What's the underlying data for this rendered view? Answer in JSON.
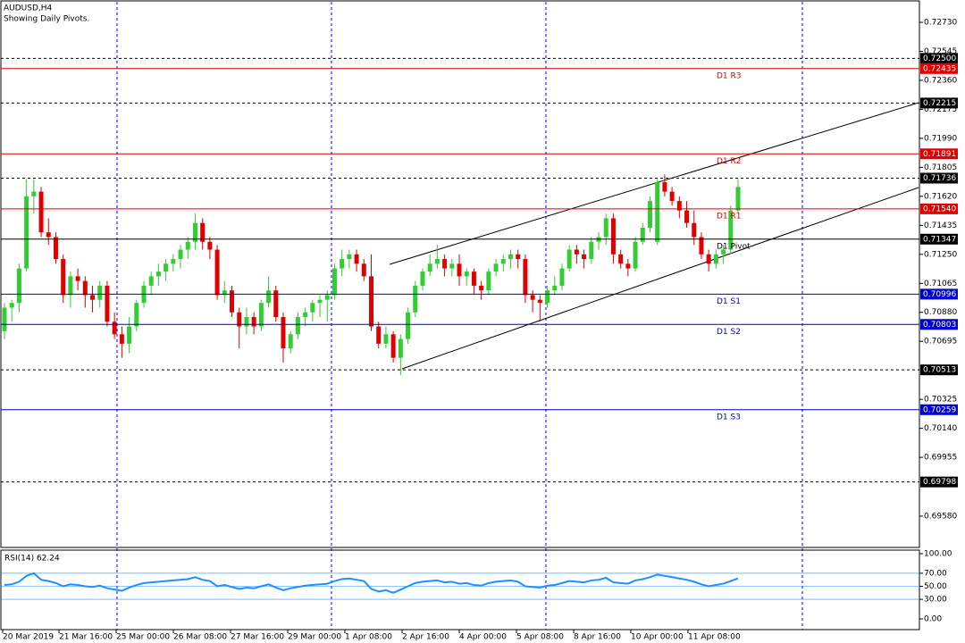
{
  "chart_data": {
    "type": "candlestick",
    "title": "AUDUSD,H4",
    "subtitle": "Showing Daily Pivots.",
    "up_color": "#32cd32",
    "down_color": "#e00000",
    "ylim": [
      0.69386,
      0.72861
    ],
    "yticks": [
      {
        "value": 0.7273,
        "label": "0.72730"
      },
      0.72545,
      {
        "value": 0.7236,
        "label": "0.72360"
      },
      {
        "value": 0.72175,
        "label": "0.72175"
      },
      {
        "value": 0.7199,
        "label": "0.71990"
      },
      0.71805,
      {
        "value": 0.7162,
        "label": "0.71620"
      },
      0.71435,
      {
        "value": 0.7125,
        "label": "0.71250"
      },
      0.71065,
      {
        "value": 0.7088,
        "label": "0.70880"
      },
      0.70695,
      0.70325,
      {
        "value": 0.7014,
        "label": "0.70140"
      },
      0.69955,
      {
        "value": 0.6958,
        "label": "0.69580"
      }
    ],
    "x_labels": [
      "20 Mar 2019",
      "21 Mar 16:00",
      "25 Mar 00:00",
      "26 Mar 08:00",
      "27 Mar 16:00",
      "29 Mar 00:00",
      "1 Apr 08:00",
      "2 Apr 16:00",
      "4 Apr 00:00",
      "5 Apr 08:00",
      "8 Apr 16:00",
      "10 Apr 00:00",
      "11 Apr 08:00"
    ],
    "levels": [
      {
        "value": 0.725,
        "label": "0.72500",
        "color": "#000000",
        "style": "dashed"
      },
      {
        "name": "D1 R3",
        "value": 0.72435,
        "label": "0.72435",
        "color": "#e00000",
        "style": "solid"
      },
      {
        "value": 0.72215,
        "label": "0.72215",
        "color": "#000000",
        "style": "dashed"
      },
      {
        "name": "D1 R2",
        "value": 0.71891,
        "label": "0.71891",
        "color": "#e00000",
        "style": "solid"
      },
      {
        "value": 0.71736,
        "label": "0.71736",
        "color": "#000000",
        "style": "dashed"
      },
      {
        "name": "D1 R1",
        "value": 0.7154,
        "label": "0.71540",
        "color": "#e00000",
        "style": "solid"
      },
      {
        "name": "D1 Pivot",
        "value": 0.71347,
        "label": "0.71347",
        "color": "#000000",
        "style": "solid"
      },
      {
        "name": "D1 S1",
        "value": 0.70996,
        "label": "0.70996",
        "color": "#0000cc",
        "style": "solid"
      },
      {
        "name": "D1 S2",
        "value": 0.70803,
        "label": "0.70803",
        "color": "#0000cc",
        "style": "solid"
      },
      {
        "value": 0.70513,
        "label": "0.70513",
        "color": "#000000",
        "style": "dashed"
      },
      {
        "name": "D1 S3",
        "value": 0.70259,
        "label": "0.70259",
        "color": "#0000cc",
        "style": "solid"
      },
      {
        "value": 0.69798,
        "label": "0.69798",
        "color": "#000000",
        "style": "dashed"
      }
    ],
    "candles": [
      [
        0.7076,
        0.7094,
        0.7071,
        0.7091
      ],
      [
        0.7091,
        0.7096,
        0.7082,
        0.7094
      ],
      [
        0.7094,
        0.7119,
        0.7088,
        0.7116
      ],
      [
        0.7116,
        0.7173,
        0.7114,
        0.7162
      ],
      [
        0.7162,
        0.7173,
        0.7151,
        0.7165
      ],
      [
        0.7165,
        0.7168,
        0.7136,
        0.7139
      ],
      [
        0.7139,
        0.7148,
        0.7131,
        0.7136
      ],
      [
        0.7136,
        0.7139,
        0.7119,
        0.7122
      ],
      [
        0.7122,
        0.7125,
        0.7094,
        0.7099
      ],
      [
        0.7099,
        0.7114,
        0.7091,
        0.7111
      ],
      [
        0.7111,
        0.7116,
        0.7102,
        0.7108
      ],
      [
        0.7108,
        0.7111,
        0.7091,
        0.7099
      ],
      [
        0.7099,
        0.7105,
        0.7088,
        0.7096
      ],
      [
        0.7096,
        0.7108,
        0.7091,
        0.7105
      ],
      [
        0.7105,
        0.7108,
        0.7079,
        0.7082
      ],
      [
        0.7082,
        0.7088,
        0.7071,
        0.7074
      ],
      [
        0.7074,
        0.7079,
        0.7059,
        0.7068
      ],
      [
        0.7068,
        0.7085,
        0.7062,
        0.7079
      ],
      [
        0.7079,
        0.7096,
        0.7076,
        0.7094
      ],
      [
        0.7094,
        0.7108,
        0.7091,
        0.7105
      ],
      [
        0.7105,
        0.7114,
        0.7099,
        0.7111
      ],
      [
        0.7111,
        0.7119,
        0.7105,
        0.7114
      ],
      [
        0.7114,
        0.7122,
        0.7108,
        0.7119
      ],
      [
        0.7119,
        0.7125,
        0.7114,
        0.7122
      ],
      [
        0.7122,
        0.7131,
        0.7116,
        0.7128
      ],
      [
        0.7128,
        0.7136,
        0.7122,
        0.7133
      ],
      [
        0.7133,
        0.7151,
        0.7128,
        0.7145
      ],
      [
        0.7145,
        0.7148,
        0.7128,
        0.7133
      ],
      [
        0.7133,
        0.7136,
        0.7122,
        0.7128
      ],
      [
        0.7128,
        0.7131,
        0.7096,
        0.7099
      ],
      [
        0.7099,
        0.7108,
        0.7094,
        0.7102
      ],
      [
        0.7102,
        0.7105,
        0.7085,
        0.7088
      ],
      [
        0.7088,
        0.7091,
        0.7065,
        0.7079
      ],
      [
        0.7079,
        0.7091,
        0.7074,
        0.7085
      ],
      [
        0.7085,
        0.7088,
        0.7074,
        0.7079
      ],
      [
        0.7079,
        0.7096,
        0.7076,
        0.7094
      ],
      [
        0.7094,
        0.7111,
        0.7091,
        0.7102
      ],
      [
        0.7102,
        0.7105,
        0.7082,
        0.7085
      ],
      [
        0.7085,
        0.7088,
        0.7056,
        0.7065
      ],
      [
        0.7065,
        0.7076,
        0.7062,
        0.7074
      ],
      [
        0.7074,
        0.7088,
        0.7071,
        0.7085
      ],
      [
        0.7085,
        0.7091,
        0.7079,
        0.7088
      ],
      [
        0.7088,
        0.7096,
        0.7082,
        0.7094
      ],
      [
        0.7094,
        0.7099,
        0.7085,
        0.7096
      ],
      [
        0.7096,
        0.7102,
        0.7082,
        0.7099
      ],
      [
        0.7099,
        0.7119,
        0.7096,
        0.7116
      ],
      [
        0.7116,
        0.7128,
        0.7111,
        0.7122
      ],
      [
        0.7122,
        0.7128,
        0.7116,
        0.7125
      ],
      [
        0.7125,
        0.7128,
        0.7114,
        0.7119
      ],
      [
        0.7119,
        0.7122,
        0.7108,
        0.7111
      ],
      [
        0.7111,
        0.7125,
        0.7076,
        0.7079
      ],
      [
        0.7079,
        0.7082,
        0.7065,
        0.7068
      ],
      [
        0.7068,
        0.7079,
        0.7065,
        0.7074
      ],
      [
        0.7074,
        0.7076,
        0.7056,
        0.7059
      ],
      [
        0.7059,
        0.7074,
        0.7048,
        0.7071
      ],
      [
        0.7071,
        0.7091,
        0.7068,
        0.7088
      ],
      [
        0.7088,
        0.7108,
        0.7085,
        0.7105
      ],
      [
        0.7105,
        0.7116,
        0.7102,
        0.7114
      ],
      [
        0.7114,
        0.7125,
        0.7111,
        0.7119
      ],
      [
        0.7119,
        0.7131,
        0.7116,
        0.7122
      ],
      [
        0.7122,
        0.7125,
        0.7111,
        0.7116
      ],
      [
        0.7116,
        0.7122,
        0.7111,
        0.7119
      ],
      [
        0.7119,
        0.7125,
        0.7105,
        0.7111
      ],
      [
        0.7111,
        0.7116,
        0.7105,
        0.7114
      ],
      [
        0.7114,
        0.7116,
        0.7099,
        0.7105
      ],
      [
        0.7105,
        0.7108,
        0.7096,
        0.7102
      ],
      [
        0.7102,
        0.7116,
        0.7099,
        0.7114
      ],
      [
        0.7114,
        0.7122,
        0.7111,
        0.7119
      ],
      [
        0.7119,
        0.7125,
        0.7114,
        0.7122
      ],
      [
        0.7122,
        0.7128,
        0.7116,
        0.7125
      ],
      [
        0.7125,
        0.7128,
        0.7116,
        0.7122
      ],
      [
        0.7122,
        0.7125,
        0.7094,
        0.7099
      ],
      [
        0.7099,
        0.7102,
        0.7088,
        0.7096
      ],
      [
        0.7096,
        0.7099,
        0.7082,
        0.7094
      ],
      [
        0.7094,
        0.7105,
        0.7091,
        0.7102
      ],
      [
        0.7102,
        0.7111,
        0.7099,
        0.7105
      ],
      [
        0.7105,
        0.7119,
        0.7102,
        0.7116
      ],
      [
        0.7116,
        0.7131,
        0.7114,
        0.7128
      ],
      [
        0.7128,
        0.7131,
        0.7119,
        0.7125
      ],
      [
        0.7125,
        0.7128,
        0.7116,
        0.7122
      ],
      [
        0.7122,
        0.7136,
        0.7119,
        0.7133
      ],
      [
        0.7133,
        0.7139,
        0.7128,
        0.7136
      ],
      [
        0.7136,
        0.7151,
        0.7131,
        0.7148
      ],
      [
        0.7148,
        0.7151,
        0.7119,
        0.7125
      ],
      [
        0.7125,
        0.7128,
        0.7116,
        0.7119
      ],
      [
        0.7119,
        0.7122,
        0.7111,
        0.7116
      ],
      [
        0.7116,
        0.7136,
        0.7114,
        0.7133
      ],
      [
        0.7133,
        0.7145,
        0.7131,
        0.7142
      ],
      [
        0.7142,
        0.7162,
        0.7139,
        0.7159
      ],
      [
        0.7133,
        0.7173,
        0.7131,
        0.7171
      ],
      [
        0.7171,
        0.7176,
        0.7162,
        0.7165
      ],
      [
        0.7165,
        0.7168,
        0.7156,
        0.7159
      ],
      [
        0.7159,
        0.7162,
        0.7148,
        0.7153
      ],
      [
        0.7153,
        0.7159,
        0.7142,
        0.7145
      ],
      [
        0.7145,
        0.7153,
        0.7131,
        0.7136
      ],
      [
        0.7136,
        0.7139,
        0.7122,
        0.7125
      ],
      [
        0.7125,
        0.7128,
        0.7114,
        0.7119
      ],
      [
        0.7119,
        0.7128,
        0.7116,
        0.7125
      ],
      [
        0.7125,
        0.7131,
        0.7119,
        0.7128
      ],
      [
        0.7128,
        0.7156,
        0.7125,
        0.7153
      ],
      [
        0.7153,
        0.7173,
        0.7151,
        0.7168
      ]
    ],
    "rsi": {
      "title": "RSI(14) 62.24",
      "color": "#1e90ff",
      "ylim": [
        0,
        100
      ],
      "yticks": [
        {
          "value": 100,
          "label": "100.00"
        },
        {
          "value": 70,
          "label": "70.00"
        },
        {
          "value": 50,
          "label": "50.00"
        },
        {
          "value": 30,
          "label": "30.00"
        },
        {
          "value": 0,
          "label": "0.00"
        }
      ],
      "grid_levels": [
        70,
        50,
        30
      ],
      "values": [
        52,
        53,
        57,
        66,
        70,
        60,
        58,
        55,
        50,
        53,
        52,
        50,
        49,
        51,
        47,
        45,
        43,
        48,
        52,
        55,
        56,
        57,
        58,
        59,
        60,
        61,
        64,
        60,
        58,
        50,
        52,
        49,
        46,
        48,
        47,
        50,
        53,
        48,
        44,
        47,
        49,
        51,
        52,
        53,
        54,
        58,
        61,
        62,
        60,
        58,
        46,
        42,
        44,
        40,
        45,
        50,
        55,
        57,
        58,
        59,
        56,
        57,
        54,
        55,
        52,
        51,
        55,
        57,
        58,
        59,
        57,
        50,
        49,
        48,
        51,
        52,
        55,
        58,
        57,
        56,
        59,
        60,
        63,
        56,
        55,
        54,
        59,
        61,
        64,
        68,
        66,
        64,
        62,
        60,
        57,
        53,
        50,
        52,
        54,
        58,
        62.24
      ]
    }
  }
}
